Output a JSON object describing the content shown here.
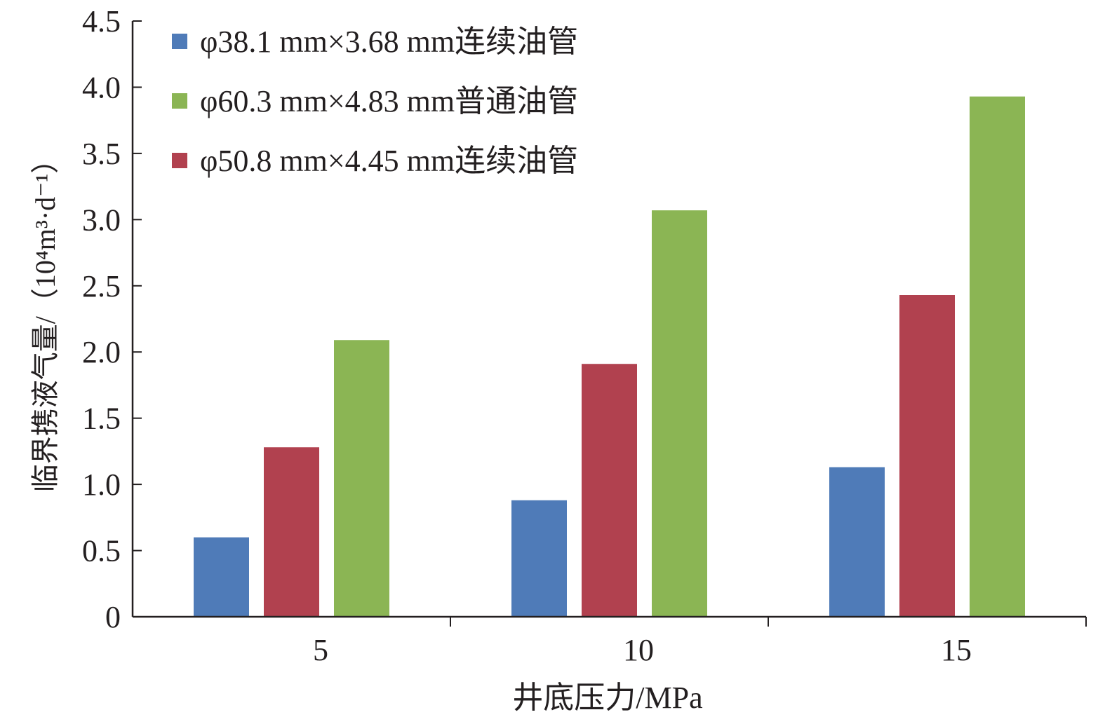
{
  "chart_data": {
    "type": "bar",
    "title": "",
    "xlabel": "井底压力/MPa",
    "ylabel": "临界携液气量/（10⁴m³·d⁻¹）",
    "categories": [
      "5",
      "10",
      "15"
    ],
    "ylim": [
      0,
      4.5
    ],
    "yticks": [
      "0",
      "0.5",
      "1.0",
      "1.5",
      "2.0",
      "2.5",
      "3.0",
      "3.5",
      "4.0",
      "4.5"
    ],
    "grid": false,
    "legend_position": "top-left",
    "bar_order": [
      0,
      2,
      1
    ],
    "series": [
      {
        "name": "φ38.1 mm×3.68 mm连续油管",
        "color": "#4f7bb8",
        "values": [
          0.6,
          0.88,
          1.13
        ]
      },
      {
        "name": "φ60.3 mm×4.83 mm普通油管",
        "color": "#8bb554",
        "values": [
          2.09,
          3.07,
          3.93
        ]
      },
      {
        "name": "φ50.8 mm×4.45 mm连续油管",
        "color": "#b1414f",
        "values": [
          1.28,
          1.91,
          2.43
        ]
      }
    ]
  }
}
